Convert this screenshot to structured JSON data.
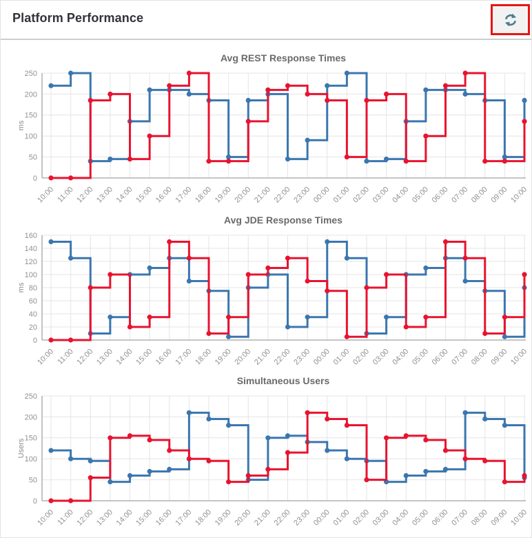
{
  "header": {
    "title": "Platform Performance",
    "refresh_tooltip": "Refresh",
    "highlight_color": "#e71414",
    "icon_color": "#4b7e91"
  },
  "palette": {
    "series_blue": "#3b76af",
    "series_red": "#e8132f",
    "grid": "#e4e4e4",
    "axis": "#b0b0b0",
    "tick_text": "#919191"
  },
  "chart_data": [
    {
      "type": "line",
      "step": true,
      "title": "Avg REST Response Times",
      "ylabel": "ms",
      "ylim": [
        0,
        250
      ],
      "yticks": [
        0,
        50,
        100,
        150,
        200,
        250
      ],
      "grid": true,
      "legend": "none",
      "categories": [
        "10:00",
        "11:00",
        "12:00",
        "13:00",
        "14:00",
        "15:00",
        "16:00",
        "17:00",
        "18:00",
        "19:00",
        "20:00",
        "21:00",
        "22:00",
        "23:00",
        "00:00",
        "01:00",
        "02:00",
        "03:00",
        "04:00",
        "05:00",
        "06:00",
        "07:00",
        "08:00",
        "09:00",
        "10:00"
      ],
      "series": [
        {
          "name": "blue",
          "color": "#3b76af",
          "values": [
            220,
            250,
            40,
            45,
            135,
            210,
            210,
            200,
            185,
            50,
            185,
            200,
            45,
            90,
            220,
            250,
            40,
            45,
            135,
            210,
            210,
            200,
            185,
            50,
            185
          ]
        },
        {
          "name": "red",
          "color": "#e8132f",
          "values": [
            0,
            0,
            185,
            200,
            45,
            100,
            220,
            250,
            40,
            40,
            135,
            210,
            220,
            200,
            185,
            50,
            185,
            200,
            40,
            100,
            220,
            250,
            40,
            40,
            135
          ]
        }
      ]
    },
    {
      "type": "line",
      "step": true,
      "title": "Avg JDE Response Times",
      "ylabel": "ms",
      "ylim": [
        0,
        160
      ],
      "yticks": [
        0,
        20,
        40,
        60,
        80,
        100,
        120,
        140,
        160
      ],
      "grid": true,
      "legend": "none",
      "categories": [
        "10:00",
        "11:00",
        "12:00",
        "13:00",
        "14:00",
        "15:00",
        "16:00",
        "17:00",
        "18:00",
        "19:00",
        "20:00",
        "21:00",
        "22:00",
        "23:00",
        "00:00",
        "01:00",
        "02:00",
        "03:00",
        "04:00",
        "05:00",
        "06:00",
        "07:00",
        "08:00",
        "09:00",
        "10:00"
      ],
      "series": [
        {
          "name": "blue",
          "color": "#3b76af",
          "values": [
            150,
            125,
            10,
            35,
            100,
            110,
            125,
            90,
            75,
            5,
            80,
            100,
            20,
            35,
            150,
            125,
            10,
            35,
            100,
            110,
            125,
            90,
            75,
            5,
            80
          ]
        },
        {
          "name": "red",
          "color": "#e8132f",
          "values": [
            0,
            0,
            80,
            100,
            20,
            35,
            150,
            125,
            10,
            35,
            100,
            110,
            125,
            90,
            75,
            5,
            80,
            100,
            20,
            35,
            150,
            125,
            10,
            35,
            100
          ]
        }
      ]
    },
    {
      "type": "line",
      "step": true,
      "title": "Simultaneous Users",
      "ylabel": "Users",
      "ylim": [
        0,
        250
      ],
      "yticks": [
        0,
        50,
        100,
        150,
        200,
        250
      ],
      "grid": true,
      "legend": "none",
      "categories": [
        "10:00",
        "11:00",
        "12:00",
        "13:00",
        "14:00",
        "15:00",
        "16:00",
        "17:00",
        "18:00",
        "19:00",
        "20:00",
        "21:00",
        "22:00",
        "23:00",
        "00:00",
        "01:00",
        "02:00",
        "03:00",
        "04:00",
        "05:00",
        "06:00",
        "07:00",
        "08:00",
        "09:00",
        "10:00"
      ],
      "series": [
        {
          "name": "blue",
          "color": "#3b76af",
          "values": [
            120,
            100,
            95,
            45,
            60,
            70,
            75,
            210,
            195,
            180,
            50,
            150,
            155,
            140,
            120,
            100,
            95,
            45,
            60,
            70,
            75,
            210,
            195,
            180,
            55
          ]
        },
        {
          "name": "red",
          "color": "#e8132f",
          "values": [
            0,
            0,
            55,
            150,
            155,
            145,
            120,
            100,
            95,
            45,
            60,
            75,
            115,
            210,
            195,
            180,
            50,
            150,
            155,
            145,
            120,
            100,
            95,
            45,
            60
          ]
        }
      ]
    }
  ]
}
